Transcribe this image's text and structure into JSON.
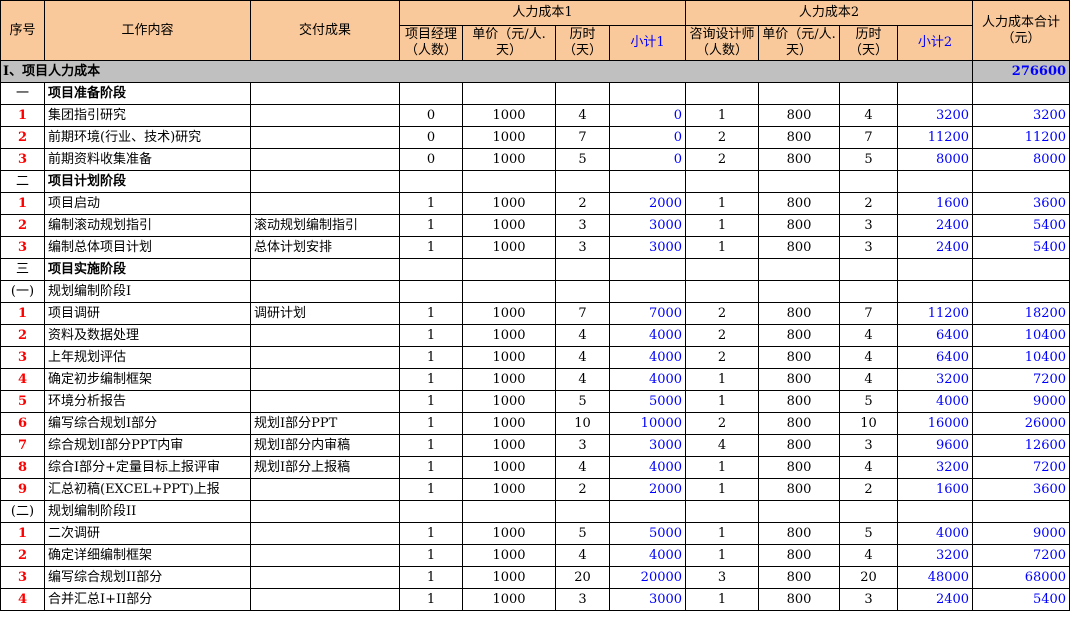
{
  "header": {
    "seq": "序号",
    "work": "工作内容",
    "deliver": "交付成果",
    "group1": "人力成本1",
    "group2": "人力成本2",
    "total": "人力成本合计（元）",
    "sub1": [
      "项目经理（人数）",
      "单价（元/人.天）",
      "历时（天）",
      "小计1"
    ],
    "sub2": [
      "咨询设计师（人数）",
      "单价（元/人.天）",
      "历时（天）",
      "小计2"
    ]
  },
  "section": {
    "label": "I、项目人力成本",
    "total": "276600"
  },
  "rows": [
    {
      "type": "stage",
      "seq": "一",
      "work": "项目准备阶段"
    },
    {
      "type": "item",
      "seq": "1",
      "work": "集团指引研究",
      "deliver": "",
      "v": [
        "0",
        "1000",
        "4",
        "0",
        "1",
        "800",
        "4",
        "3200",
        "3200"
      ]
    },
    {
      "type": "item",
      "seq": "2",
      "work": "前期环境(行业、技术)研究",
      "deliver": "",
      "v": [
        "0",
        "1000",
        "7",
        "0",
        "2",
        "800",
        "7",
        "11200",
        "11200"
      ]
    },
    {
      "type": "item",
      "seq": "3",
      "work": "前期资料收集准备",
      "deliver": "",
      "v": [
        "0",
        "1000",
        "5",
        "0",
        "2",
        "800",
        "5",
        "8000",
        "8000"
      ]
    },
    {
      "type": "stage",
      "seq": "二",
      "work": "项目计划阶段"
    },
    {
      "type": "item",
      "seq": "1",
      "work": "项目启动",
      "deliver": "",
      "v": [
        "1",
        "1000",
        "2",
        "2000",
        "1",
        "800",
        "2",
        "1600",
        "3600"
      ]
    },
    {
      "type": "item",
      "seq": "2",
      "work": "编制滚动规划指引",
      "deliver": "滚动规划编制指引",
      "v": [
        "1",
        "1000",
        "3",
        "3000",
        "1",
        "800",
        "3",
        "2400",
        "5400"
      ]
    },
    {
      "type": "item",
      "seq": "3",
      "work": "编制总体项目计划",
      "deliver": "总体计划安排",
      "v": [
        "1",
        "1000",
        "3",
        "3000",
        "1",
        "800",
        "3",
        "2400",
        "5400"
      ]
    },
    {
      "type": "stage",
      "seq": "三",
      "work": "项目实施阶段"
    },
    {
      "type": "sub",
      "seq": "(一)",
      "work": "规划编制阶段I"
    },
    {
      "type": "item",
      "seq": "1",
      "work": "项目调研",
      "deliver": "调研计划",
      "v": [
        "1",
        "1000",
        "7",
        "7000",
        "2",
        "800",
        "7",
        "11200",
        "18200"
      ]
    },
    {
      "type": "item",
      "seq": "2",
      "work": "资料及数据处理",
      "deliver": "",
      "v": [
        "1",
        "1000",
        "4",
        "4000",
        "2",
        "800",
        "4",
        "6400",
        "10400"
      ]
    },
    {
      "type": "item",
      "seq": "3",
      "work": "上年规划评估",
      "deliver": "",
      "v": [
        "1",
        "1000",
        "4",
        "4000",
        "2",
        "800",
        "4",
        "6400",
        "10400"
      ]
    },
    {
      "type": "item",
      "seq": "4",
      "work": "确定初步编制框架",
      "deliver": "",
      "v": [
        "1",
        "1000",
        "4",
        "4000",
        "1",
        "800",
        "4",
        "3200",
        "7200"
      ]
    },
    {
      "type": "item",
      "seq": "5",
      "work": "环境分析报告",
      "deliver": "",
      "v": [
        "1",
        "1000",
        "5",
        "5000",
        "1",
        "800",
        "5",
        "4000",
        "9000"
      ]
    },
    {
      "type": "item",
      "seq": "6",
      "work": "编写综合规划I部分",
      "deliver": "规划I部分PPT",
      "v": [
        "1",
        "1000",
        "10",
        "10000",
        "2",
        "800",
        "10",
        "16000",
        "26000"
      ]
    },
    {
      "type": "item",
      "seq": "7",
      "work": "综合规划I部分PPT内审",
      "deliver": "规划I部分内审稿",
      "v": [
        "1",
        "1000",
        "3",
        "3000",
        "4",
        "800",
        "3",
        "9600",
        "12600"
      ]
    },
    {
      "type": "item",
      "seq": "8",
      "work": "综合I部分+定量目标上报评审",
      "deliver": "规划I部分上报稿",
      "v": [
        "1",
        "1000",
        "4",
        "4000",
        "1",
        "800",
        "4",
        "3200",
        "7200"
      ]
    },
    {
      "type": "item",
      "seq": "9",
      "work": "汇总初稿(EXCEL+PPT)上报",
      "deliver": "",
      "v": [
        "1",
        "1000",
        "2",
        "2000",
        "1",
        "800",
        "2",
        "1600",
        "3600"
      ]
    },
    {
      "type": "sub",
      "seq": "(二)",
      "work": "规划编制阶段II"
    },
    {
      "type": "item",
      "seq": "1",
      "work": "二次调研",
      "deliver": "",
      "v": [
        "1",
        "1000",
        "5",
        "5000",
        "1",
        "800",
        "5",
        "4000",
        "9000"
      ]
    },
    {
      "type": "item",
      "seq": "2",
      "work": "确定详细编制框架",
      "deliver": "",
      "v": [
        "1",
        "1000",
        "4",
        "4000",
        "1",
        "800",
        "4",
        "3200",
        "7200"
      ]
    },
    {
      "type": "item",
      "seq": "3",
      "work": "编写综合规划II部分",
      "deliver": "",
      "v": [
        "1",
        "1000",
        "20",
        "20000",
        "3",
        "800",
        "20",
        "48000",
        "68000"
      ]
    },
    {
      "type": "item",
      "seq": "4",
      "work": "合并汇总I+II部分",
      "deliver": "",
      "v": [
        "1",
        "1000",
        "3",
        "3000",
        "1",
        "800",
        "3",
        "2400",
        "5400"
      ]
    }
  ]
}
